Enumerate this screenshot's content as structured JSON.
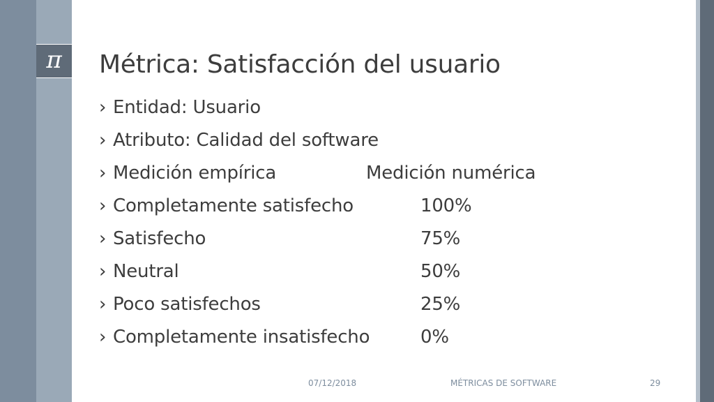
{
  "logo": {
    "glyph": "π"
  },
  "title": "Métrica: Satisfacción del usuario",
  "bullet_marker": "›",
  "bullets": [
    {
      "label": "Entidad: Usuario",
      "value": ""
    },
    {
      "label": "Atributo: Calidad del software",
      "value": ""
    },
    {
      "label": "Medición empírica",
      "value": "Medición numérica"
    },
    {
      "label": "Completamente satisfecho",
      "value": "100%"
    },
    {
      "label": "Satisfecho",
      "value": "75%"
    },
    {
      "label": "Neutral",
      "value": "50%"
    },
    {
      "label": "Poco satisfechos",
      "value": "25%"
    },
    {
      "label": "Completamente insatisfecho",
      "value": "0%"
    }
  ],
  "footer": {
    "date": "07/12/2018",
    "title": "MÉTRICAS DE SOFTWARE",
    "page": "29"
  },
  "colors": {
    "band_outer_left": "#7d8d9e",
    "band_inner_left": "#9aa9b7",
    "band_outer_right": "#5f6b78",
    "text": "#3d3d3d",
    "footer_text": "#7d8d9e"
  }
}
